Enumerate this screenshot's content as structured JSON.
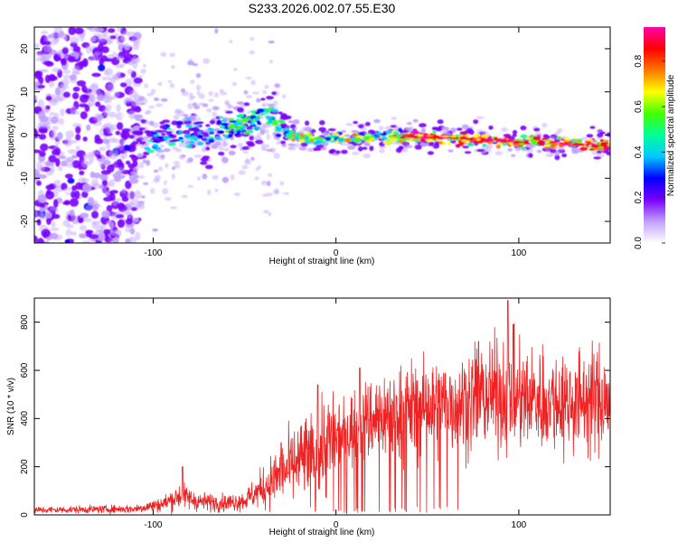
{
  "title": "S233.2026.002.07.55.E30",
  "colors": {
    "snr_line": "#ee2222",
    "frame": "#000000"
  },
  "chart_data": [
    {
      "type": "heatmap",
      "name": "spectrogram",
      "xlabel": "Height of straight line (km)",
      "ylabel": "Frequency (Hz)",
      "xlim": [
        -165,
        150
      ],
      "ylim": [
        -25,
        25
      ],
      "xticks": [
        -100,
        0,
        100
      ],
      "yticks": [
        -20,
        -10,
        0,
        10,
        20
      ],
      "xtick_labels": [
        "-100",
        "0",
        "100"
      ],
      "ytick_labels": [
        "-20",
        "-10",
        "0",
        "10",
        "20"
      ],
      "ridge": {
        "x": [
          -110,
          -100,
          -85,
          -70,
          -55,
          -45,
          -38,
          -32,
          -28,
          -22,
          -10,
          0,
          20,
          40,
          60,
          80,
          100,
          120,
          140,
          150
        ],
        "y": [
          -2,
          -0.5,
          0,
          0.5,
          2,
          4,
          4.5,
          3,
          1,
          -0.5,
          -1,
          -0.8,
          -0.5,
          -0.3,
          -0.7,
          -1,
          -1.5,
          -1.8,
          -2.2,
          -2.5
        ]
      },
      "colorbar": {
        "label": "Normalized spectral amplitude",
        "range": [
          0,
          0.95
        ],
        "ticks": [
          0.0,
          0.2,
          0.4,
          0.6,
          0.8
        ],
        "tick_labels": [
          "0.0",
          "0.2",
          "0.4",
          "0.6",
          "0.8"
        ],
        "colors": [
          "#ffffff",
          "#c0a0ff",
          "#7a00ff",
          "#0000ff",
          "#00c8ff",
          "#00ff99",
          "#44ff00",
          "#ffff00",
          "#ff7700",
          "#ff0000",
          "#ff00aa"
        ]
      }
    },
    {
      "type": "line",
      "name": "snr",
      "xlabel": "Height of straight line (km)",
      "ylabel": "SNR (10 * v/v)",
      "xlim": [
        -165,
        150
      ],
      "ylim": [
        0,
        900
      ],
      "xticks": [
        -100,
        0,
        100
      ],
      "yticks": [
        0,
        200,
        400,
        600,
        800
      ],
      "xtick_labels": [
        "-100",
        "0",
        "100"
      ],
      "ytick_labels": [
        "0",
        "200",
        "400",
        "600",
        "800"
      ],
      "trend": {
        "x": [
          -165,
          -110,
          -95,
          -85,
          -75,
          -60,
          -50,
          -40,
          -30,
          -20,
          -10,
          0,
          10,
          20,
          30,
          40,
          50,
          60,
          70,
          80,
          90,
          100,
          110,
          120,
          130,
          140,
          150
        ],
        "y": [
          20,
          25,
          45,
          80,
          55,
          50,
          60,
          110,
          170,
          220,
          270,
          310,
          360,
          400,
          420,
          440,
          450,
          460,
          470,
          490,
          500,
          480,
          480,
          470,
          470,
          480,
          480
        ]
      },
      "peaks": [
        {
          "x": -84,
          "y": 200
        },
        {
          "x": -30,
          "y": 300
        },
        {
          "x": -10,
          "y": 540
        },
        {
          "x": 13,
          "y": 610
        },
        {
          "x": 78,
          "y": 720
        },
        {
          "x": 94,
          "y": 890
        },
        {
          "x": 97,
          "y": 790
        }
      ]
    }
  ]
}
